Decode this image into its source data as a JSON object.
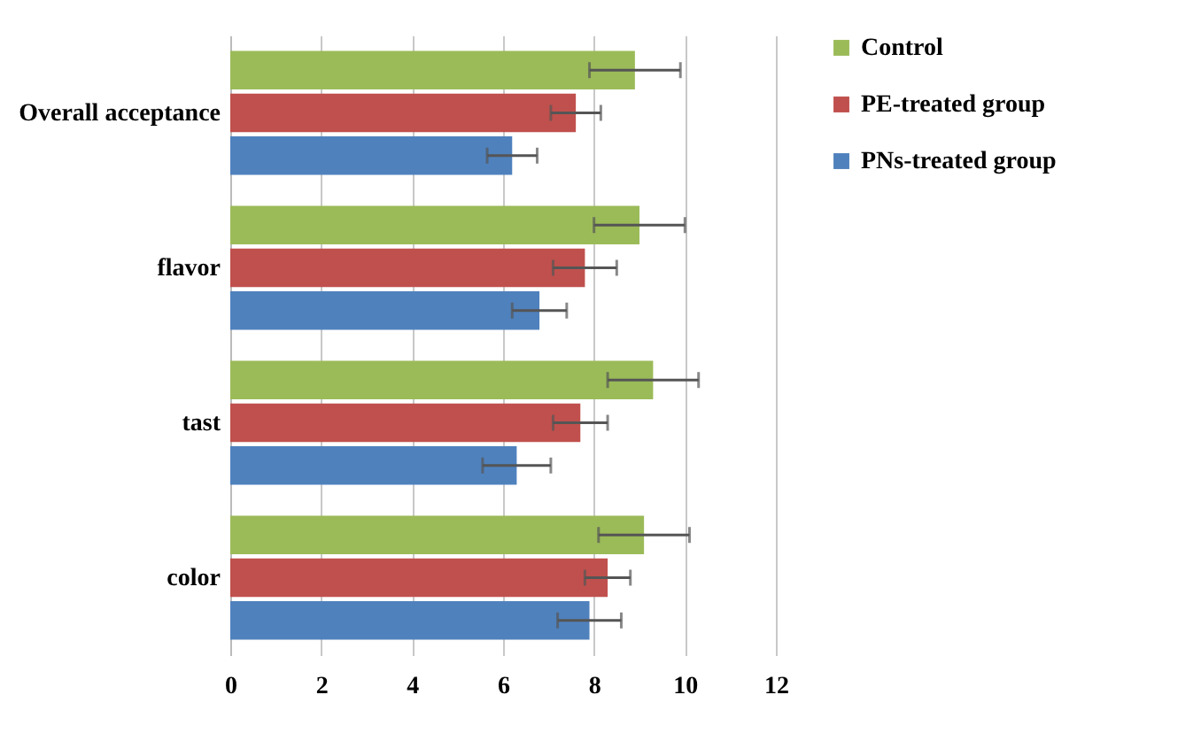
{
  "chart_data": {
    "type": "bar",
    "orientation": "horizontal",
    "categories": [
      "Overall acceptance",
      "flavor",
      "tast",
      "color"
    ],
    "series": [
      {
        "name": "Control",
        "color": "#9bbb59",
        "values": [
          8.9,
          9.0,
          9.3,
          9.1
        ],
        "errors": [
          1.0,
          1.0,
          1.0,
          1.0
        ]
      },
      {
        "name": "PE-treated group",
        "color": "#c0504d",
        "values": [
          7.6,
          7.8,
          7.7,
          8.3
        ],
        "errors": [
          0.55,
          0.7,
          0.6,
          0.5
        ]
      },
      {
        "name": "PNs-treated group",
        "color": "#4f81bd",
        "values": [
          6.2,
          6.8,
          6.3,
          7.9
        ],
        "errors": [
          0.55,
          0.6,
          0.75,
          0.7
        ]
      }
    ],
    "xlim": [
      0,
      12
    ],
    "xticks": [
      0,
      2,
      4,
      6,
      8,
      10,
      12
    ],
    "grid": true,
    "legend": "right"
  }
}
